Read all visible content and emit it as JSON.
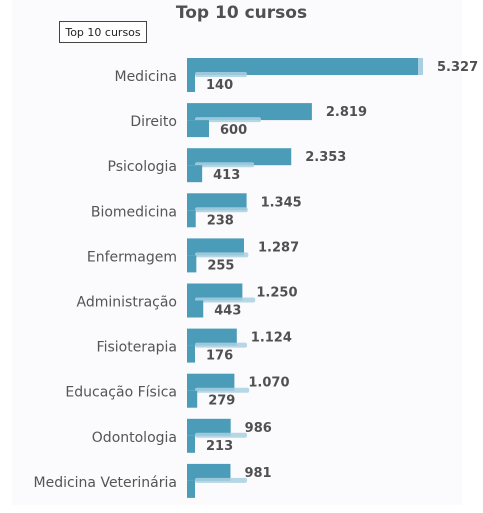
{
  "chart_data": {
    "type": "bar",
    "orientation": "horizontal",
    "title": "Top 10 cursos",
    "legend": {
      "label": "Top 10 cursos",
      "placement": "top-left"
    },
    "categories": [
      "Medicina",
      "Direito",
      "Psicologia",
      "Biomedicina",
      "Enfermagem",
      "Administração",
      "Fisioterapia",
      "Educação Física",
      "Odontologia",
      "Medicina Veterinária"
    ],
    "series": [
      {
        "values": [
          5327,
          2819,
          2353,
          1345,
          1287,
          1250,
          1124,
          1070,
          986,
          981
        ],
        "labels": [
          "5.327",
          "2.819",
          "2.353",
          "1.345",
          "1.287",
          "1.250",
          "1.124",
          "1.070",
          "986",
          "981"
        ]
      },
      {
        "values": [
          140,
          600,
          413,
          238,
          255,
          443,
          176,
          279,
          213,
          null
        ],
        "labels": [
          "140",
          "600",
          "413",
          "238",
          "255",
          "443",
          "176",
          "279",
          "213",
          ""
        ]
      }
    ],
    "colors": {
      "bar": "#4a9cb8",
      "highlight": "#a9d0e0"
    },
    "xlim": [
      0,
      5327
    ],
    "grid": false
  }
}
